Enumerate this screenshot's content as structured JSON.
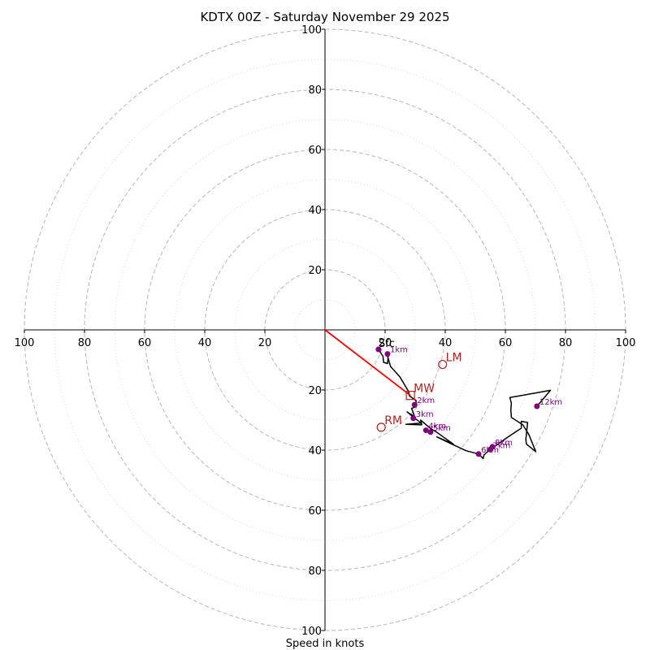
{
  "chart_data": {
    "type": "hodograph",
    "title": "KDTX 00Z - Saturday November 29 2025",
    "xlabel": "Speed in knots",
    "xlim": [
      -100,
      100
    ],
    "ylim": [
      -100,
      100
    ],
    "major_rings": [
      20,
      40,
      60,
      80,
      100
    ],
    "minor_rings": [
      10,
      30,
      50,
      70,
      90
    ],
    "tick_values": [
      20,
      40,
      60,
      80,
      100
    ],
    "tick_labels": [
      "20",
      "40",
      "60",
      "80",
      "100"
    ],
    "hodograph_trace": {
      "color": "#000000",
      "points": [
        [
          17.8,
          -6.5
        ],
        [
          19.3,
          -8.8
        ],
        [
          19.5,
          -10.8
        ],
        [
          20.8,
          -11.2
        ],
        [
          21.0,
          -9.0
        ],
        [
          20.6,
          -8.0
        ],
        [
          21.8,
          -12.2
        ],
        [
          23.7,
          -14.3
        ],
        [
          24.9,
          -15.6
        ],
        [
          27.8,
          -20.5
        ],
        [
          28.1,
          -22.0
        ],
        [
          30.3,
          -23.5
        ],
        [
          30.3,
          -25.6
        ],
        [
          28.8,
          -26.1
        ],
        [
          29.8,
          -28.9
        ],
        [
          27.3,
          -27.3
        ],
        [
          29.9,
          -29.4
        ],
        [
          32.0,
          -31.0
        ],
        [
          26.9,
          -31.4
        ],
        [
          32.2,
          -31.6
        ],
        [
          31.8,
          -30.0
        ],
        [
          35.1,
          -32.8
        ],
        [
          37.1,
          -34.0
        ],
        [
          42.7,
          -38.0
        ],
        [
          37.2,
          -35.6
        ],
        [
          41.8,
          -37.8
        ],
        [
          46.9,
          -40.2
        ],
        [
          51.1,
          -41.3
        ],
        [
          52.6,
          -42.8
        ],
        [
          52.9,
          -41.6
        ],
        [
          54.9,
          -39.8
        ],
        [
          56.8,
          -38.5
        ],
        [
          60.6,
          -35.8
        ],
        [
          65.3,
          -32.7
        ],
        [
          65.3,
          -30.4
        ],
        [
          67.4,
          -30.8
        ],
        [
          66.8,
          -36.4
        ],
        [
          67.0,
          -38.0
        ],
        [
          70.1,
          -40.5
        ],
        [
          67.8,
          -34.8
        ],
        [
          65.8,
          -31.6
        ],
        [
          62.0,
          -29.1
        ],
        [
          61.8,
          -26.6
        ],
        [
          62.0,
          -24.4
        ],
        [
          61.5,
          -22.5
        ],
        [
          75.0,
          -20.1
        ],
        [
          70.5,
          -25.4
        ]
      ]
    },
    "height_markers": [
      {
        "label": "1km",
        "u": 20.8,
        "v": -8.0
      },
      {
        "label": "2km",
        "u": 29.8,
        "v": -24.9
      },
      {
        "label": "3km",
        "u": 29.4,
        "v": -29.4
      },
      {
        "label": "4km",
        "u": 33.6,
        "v": -33.4
      },
      {
        "label": "5km",
        "u": 35.1,
        "v": -34.0
      },
      {
        "label": "6km",
        "u": 51.1,
        "v": -41.3
      },
      {
        "label": "7km",
        "u": 55.0,
        "v": -39.8
      },
      {
        "label": "8km",
        "u": 55.7,
        "v": -38.9
      },
      {
        "label": "12km",
        "u": 70.5,
        "v": -25.4
      }
    ],
    "surface_marker": {
      "label": "Sfc",
      "u": 17.8,
      "v": -6.5
    },
    "storm_motion": [
      {
        "label": "LM",
        "u": 39.1,
        "v": -11.5
      },
      {
        "label": "MW",
        "u": 28.4,
        "v": -21.8
      },
      {
        "label": "RM",
        "u": 18.7,
        "v": -32.4
      }
    ],
    "shear_vector": {
      "color": "#ff0000",
      "from": [
        0,
        0
      ],
      "to": [
        28.4,
        -21.8
      ]
    },
    "colors": {
      "axis": "#000000",
      "major_ring": "#bdbdbd",
      "minor_ring": "#d9d9d9",
      "marker": "#800080",
      "motion": "#b22222",
      "shear": "#ff0000"
    }
  }
}
